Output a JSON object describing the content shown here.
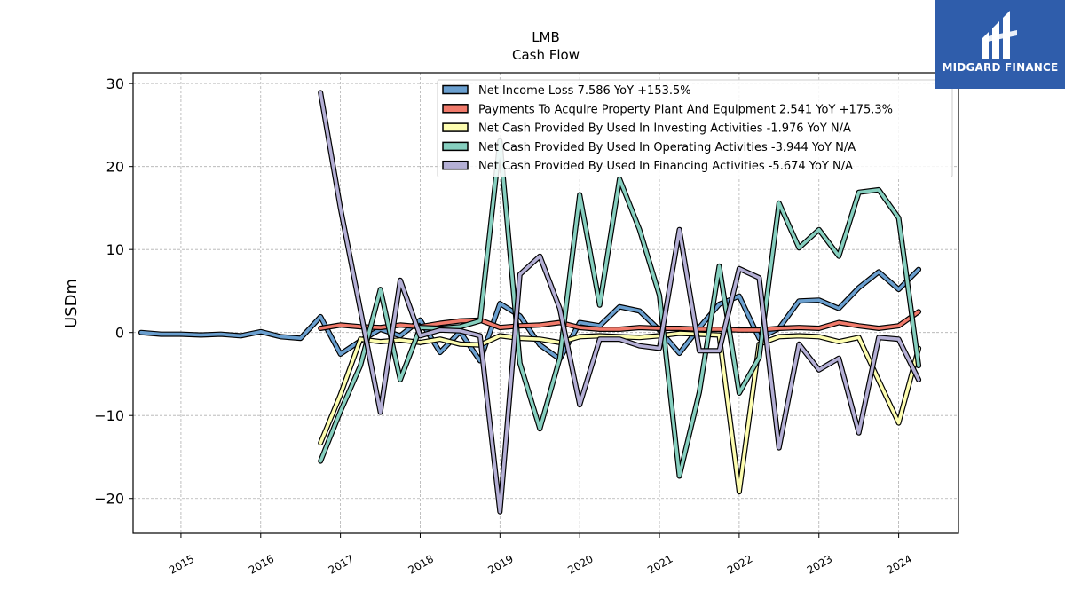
{
  "brand": {
    "name": "MIDGARD FINANCE",
    "bg": "#2f5dab"
  },
  "chart_data": {
    "type": "line",
    "title": "LMB",
    "subtitle": "Cash Flow",
    "ylabel": "USDm",
    "xlabel": "",
    "ylim": [
      -24.2,
      31.3
    ],
    "xlim": [
      2014.4,
      2024.75
    ],
    "yticks": [
      30,
      20,
      10,
      0,
      -10,
      -20
    ],
    "ytick_labels": [
      "30",
      "20",
      "10",
      "0",
      "−10",
      "−20"
    ],
    "xticks": [
      "2015",
      "2016",
      "2017",
      "2018",
      "2019",
      "2020",
      "2021",
      "2022",
      "2023",
      "2024"
    ],
    "grid": true,
    "legend_position": "top-right",
    "series": [
      {
        "name": "Net Income Loss",
        "legend": "Net Income Loss  7.586 YoY +153.5%",
        "color": "#6a9fcf",
        "x": [
          2014.5,
          2014.75,
          2015.0,
          2015.25,
          2015.5,
          2015.75,
          2016.0,
          2016.25,
          2016.5,
          2016.75,
          2017.0,
          2017.25,
          2017.5,
          2017.75,
          2018.0,
          2018.25,
          2018.5,
          2018.75,
          2019.0,
          2019.25,
          2019.5,
          2019.75,
          2020.0,
          2020.25,
          2020.5,
          2020.75,
          2021.0,
          2021.25,
          2021.5,
          2021.75,
          2022.0,
          2022.25,
          2022.5,
          2022.75,
          2023.0,
          2023.25,
          2023.5,
          2023.75,
          2024.0,
          2024.25
        ],
        "y": [
          0.0,
          -0.2,
          -0.2,
          -0.3,
          -0.2,
          -0.4,
          0.1,
          -0.5,
          -0.7,
          1.9,
          -2.6,
          -1.0,
          0.4,
          -0.4,
          1.5,
          -2.4,
          0.1,
          -3.4,
          3.5,
          2.0,
          -1.5,
          -3.2,
          1.2,
          0.8,
          3.1,
          2.6,
          0.3,
          -2.5,
          0.6,
          3.4,
          4.4,
          -0.7,
          0.5,
          3.8,
          3.9,
          2.9,
          5.4,
          7.3,
          5.2,
          7.6
        ]
      },
      {
        "name": "Payments To Acquire Property Plant And Equipment",
        "legend": "Payments To Acquire Property Plant And Equipment  2.541 YoY +175.3%",
        "color": "#f07a6b",
        "x": [
          2016.75,
          2017.0,
          2017.25,
          2017.5,
          2017.75,
          2018.0,
          2018.25,
          2018.5,
          2018.75,
          2019.0,
          2019.25,
          2019.5,
          2019.75,
          2020.0,
          2020.25,
          2020.5,
          2020.75,
          2021.0,
          2021.25,
          2021.5,
          2021.75,
          2022.0,
          2022.25,
          2022.5,
          2022.75,
          2023.0,
          2023.25,
          2023.5,
          2023.75,
          2024.0,
          2024.25
        ],
        "y": [
          0.5,
          0.9,
          0.7,
          0.6,
          0.9,
          0.7,
          1.1,
          1.4,
          1.5,
          0.6,
          0.8,
          0.9,
          1.2,
          0.6,
          0.4,
          0.4,
          0.6,
          0.5,
          0.5,
          0.4,
          0.4,
          0.3,
          0.3,
          0.5,
          0.6,
          0.5,
          1.2,
          0.8,
          0.5,
          0.8,
          2.5
        ]
      },
      {
        "name": "Net Cash Provided By Used In Investing Activities",
        "legend": "Net Cash Provided By Used In Investing Activities  -1.976 YoY N/A",
        "color": "#fdfdb0",
        "x": [
          2016.75,
          2017.0,
          2017.25,
          2017.5,
          2017.75,
          2018.0,
          2018.25,
          2018.5,
          2018.75,
          2019.0,
          2019.25,
          2019.5,
          2019.75,
          2020.0,
          2020.25,
          2020.5,
          2020.75,
          2021.0,
          2021.25,
          2021.5,
          2021.75,
          2022.0,
          2022.25,
          2022.5,
          2022.75,
          2023.0,
          2023.25,
          2023.5,
          2023.75,
          2024.0,
          2024.25
        ],
        "y": [
          -13.3,
          -7.5,
          -0.8,
          -1.1,
          -0.9,
          -1.2,
          -0.8,
          -1.4,
          -1.5,
          -0.4,
          -0.7,
          -0.8,
          -1.2,
          -0.5,
          -0.4,
          -0.5,
          -0.6,
          -0.4,
          -0.1,
          -0.2,
          -0.3,
          -19.2,
          -1.4,
          -0.5,
          -0.4,
          -0.5,
          -1.1,
          -0.6,
          -5.8,
          -10.9,
          -1.9
        ]
      },
      {
        "name": "Net Cash Provided By Used In Operating Activities",
        "legend": "Net Cash Provided By Used In Operating Activities  -3.944 YoY N/A",
        "color": "#86cfbf",
        "x": [
          2016.75,
          2017.0,
          2017.25,
          2017.5,
          2017.75,
          2018.0,
          2018.25,
          2018.5,
          2018.75,
          2019.0,
          2019.25,
          2019.5,
          2019.75,
          2020.0,
          2020.25,
          2020.5,
          2020.75,
          2021.0,
          2021.25,
          2021.5,
          2021.75,
          2022.0,
          2022.25,
          2022.5,
          2022.75,
          2023.0,
          2023.25,
          2023.5,
          2023.75,
          2024.0,
          2024.25
        ],
        "y": [
          -15.5,
          -9.5,
          -4.0,
          5.2,
          -5.7,
          0.6,
          0.5,
          0.7,
          1.4,
          23.1,
          -3.7,
          -11.6,
          -3.1,
          16.6,
          3.3,
          18.5,
          12.4,
          4.5,
          -17.3,
          -7.2,
          8.0,
          -7.3,
          -3.0,
          15.6,
          10.2,
          12.4,
          9.2,
          16.9,
          17.2,
          13.8,
          -4.0
        ]
      },
      {
        "name": "Net Cash Provided By Used In Financing Activities",
        "legend": "Net Cash Provided By Used In Financing Activities  -5.674 YoY N/A",
        "color": "#b4afd5",
        "x": [
          2016.75,
          2017.0,
          2017.25,
          2017.5,
          2017.75,
          2018.0,
          2018.25,
          2018.5,
          2018.75,
          2019.0,
          2019.25,
          2019.5,
          2019.75,
          2020.0,
          2020.25,
          2020.5,
          2020.75,
          2021.0,
          2021.25,
          2021.5,
          2021.75,
          2022.0,
          2022.25,
          2022.5,
          2022.75,
          2023.0,
          2023.25,
          2023.5,
          2023.75,
          2024.0,
          2024.25
        ],
        "y": [
          28.9,
          15.0,
          2.7,
          -9.6,
          6.3,
          -0.4,
          0.3,
          0.2,
          -0.4,
          -21.6,
          7.0,
          9.2,
          2.9,
          -8.7,
          -0.8,
          -0.8,
          -1.6,
          -1.9,
          12.4,
          -2.2,
          -2.2,
          7.7,
          6.6,
          -13.9,
          -1.4,
          -4.5,
          -3.1,
          -12.1,
          -0.6,
          -0.8,
          -5.7
        ]
      }
    ]
  }
}
